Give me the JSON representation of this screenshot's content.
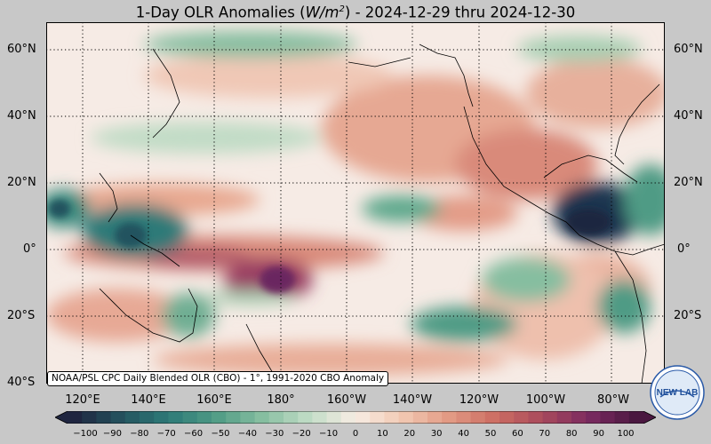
{
  "title": {
    "prefix": "1-Day OLR Anomalies (",
    "unit_base": "W/m",
    "unit_exp": "2",
    "suffix": ") - 2024-12-29 thru 2024-12-30"
  },
  "map": {
    "projection": "equirectangular",
    "lon_range": [
      "110°E",
      "60°W"
    ],
    "lat_range": [
      "40°S",
      "67°N"
    ],
    "grid_lines": "dotted",
    "lat_labels": [
      "60°N",
      "40°N",
      "20°N",
      "0°",
      "20°S",
      "40°S"
    ],
    "lon_labels": [
      "120°E",
      "140°E",
      "160°E",
      "180°",
      "160°W",
      "140°W",
      "120°W",
      "100°W",
      "80°W"
    ]
  },
  "credit": "NOAA/PSL CPC Daily Blended OLR (CBO) - 1°, 1991-2020 CBO Anomaly",
  "colorbar": {
    "ticks": [
      "−100",
      "−90",
      "−80",
      "−70",
      "−60",
      "−50",
      "−40",
      "−30",
      "−20",
      "−10",
      "0",
      "10",
      "20",
      "30",
      "40",
      "50",
      "60",
      "70",
      "80",
      "90",
      "100"
    ],
    "colors": [
      "#1f2540",
      "#24535e",
      "#2d7a78",
      "#4f9b85",
      "#86bea0",
      "#c1dcc6",
      "#f7ece4",
      "#f2c9b3",
      "#e29a84",
      "#cc6d62",
      "#a84a5c",
      "#7a2a60",
      "#4a1840"
    ]
  },
  "logo": "NEW LAB"
}
